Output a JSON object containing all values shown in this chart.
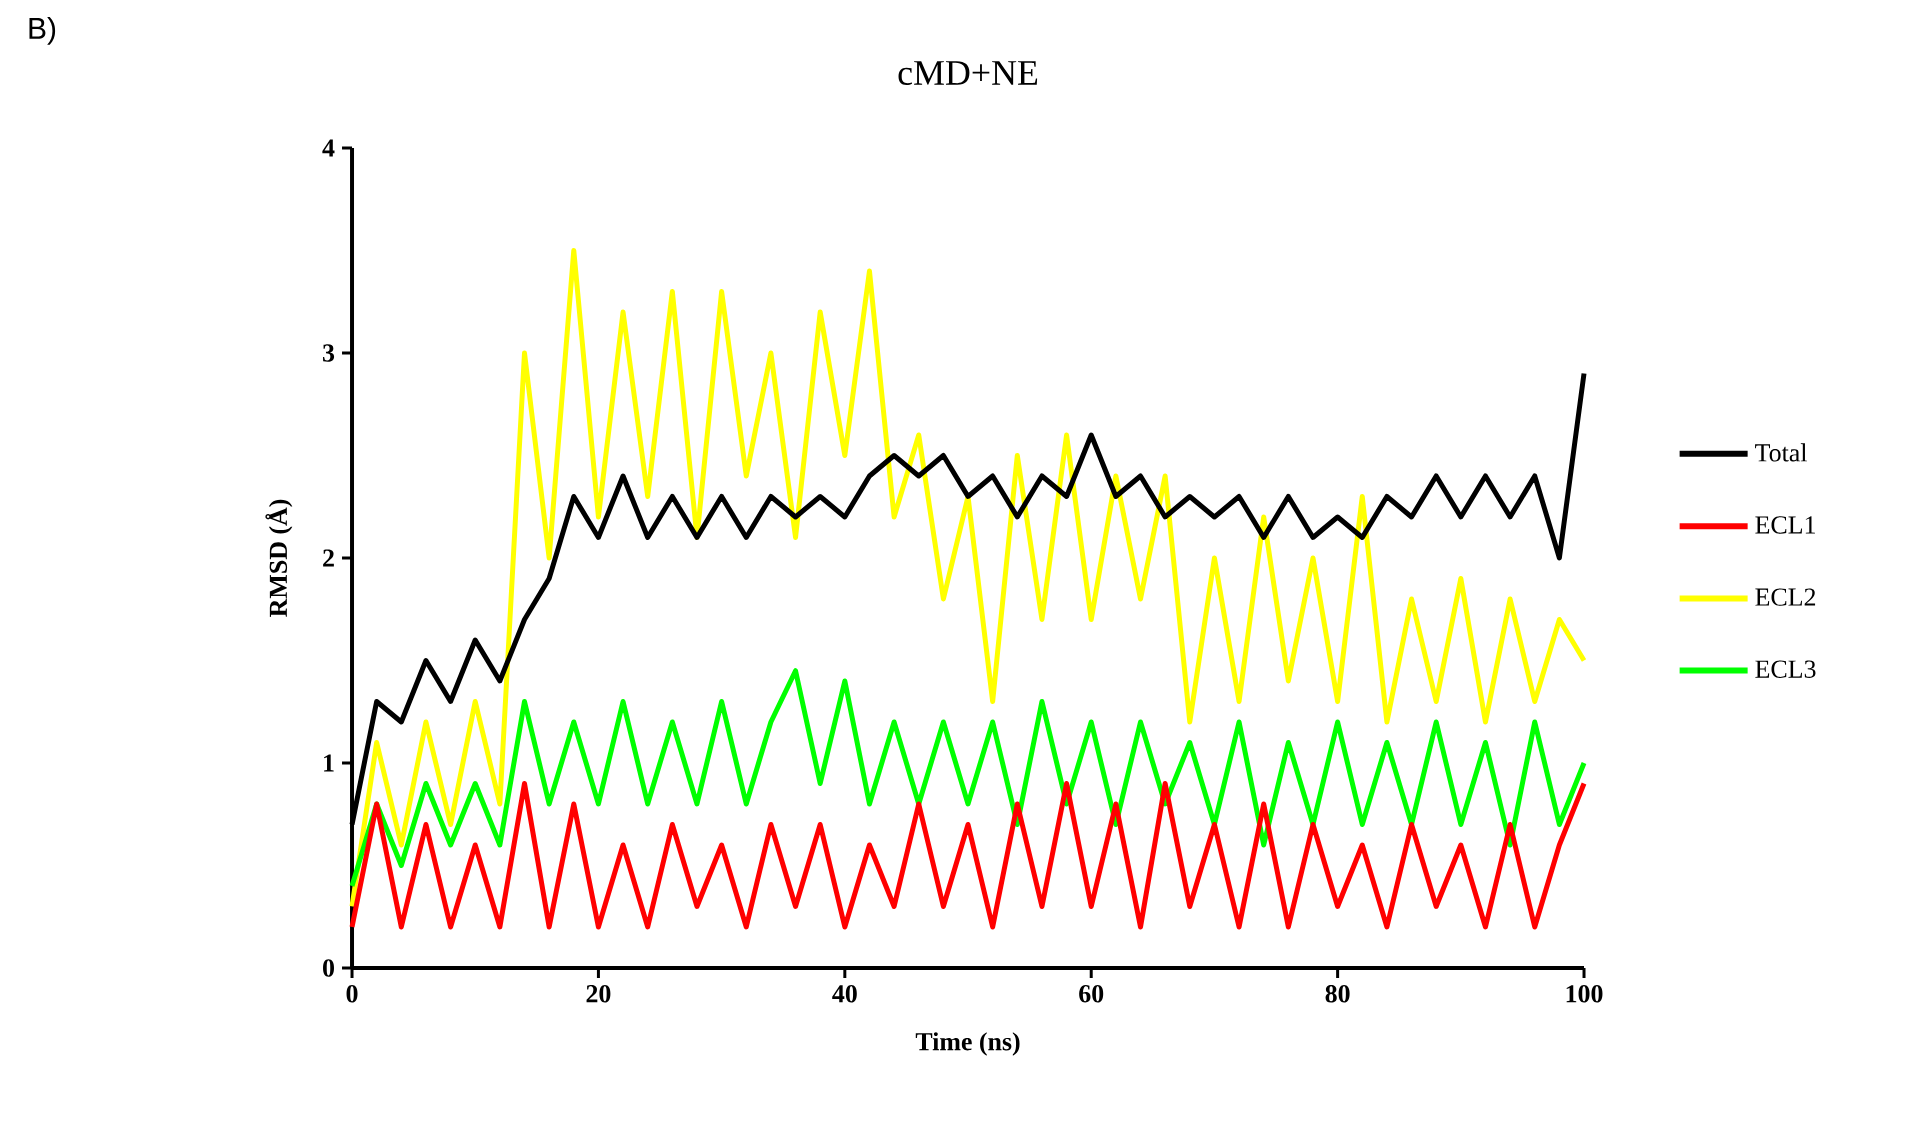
{
  "chart_data": {
    "type": "line",
    "title": "cMD+NE",
    "xlabel": "Time (ns)",
    "ylabel": "RMSD (Å)",
    "annotations": [
      "B)"
    ],
    "x": [
      0,
      2,
      4,
      6,
      8,
      10,
      12,
      14,
      16,
      18,
      20,
      22,
      24,
      26,
      28,
      30,
      32,
      34,
      36,
      38,
      40,
      42,
      44,
      46,
      48,
      50,
      52,
      54,
      56,
      58,
      60,
      62,
      64,
      66,
      68,
      70,
      72,
      74,
      76,
      78,
      80,
      82,
      84,
      86,
      88,
      90,
      92,
      94,
      96,
      98,
      100
    ],
    "series": [
      {
        "name": "Total",
        "color": "#000000",
        "values": [
          0.7,
          1.3,
          1.2,
          1.5,
          1.3,
          1.6,
          1.4,
          1.7,
          1.9,
          2.3,
          2.1,
          2.4,
          2.1,
          2.3,
          2.1,
          2.3,
          2.1,
          2.3,
          2.2,
          2.3,
          2.2,
          2.4,
          2.5,
          2.4,
          2.5,
          2.3,
          2.4,
          2.2,
          2.4,
          2.3,
          2.6,
          2.3,
          2.4,
          2.2,
          2.3,
          2.2,
          2.3,
          2.1,
          2.3,
          2.1,
          2.2,
          2.1,
          2.3,
          2.2,
          2.4,
          2.2,
          2.4,
          2.2,
          2.4,
          2.0,
          2.9
        ]
      },
      {
        "name": "ECL1",
        "color": "#ff0000",
        "values": [
          0.2,
          0.8,
          0.2,
          0.7,
          0.2,
          0.6,
          0.2,
          0.9,
          0.2,
          0.8,
          0.2,
          0.6,
          0.2,
          0.7,
          0.3,
          0.6,
          0.2,
          0.7,
          0.3,
          0.7,
          0.2,
          0.6,
          0.3,
          0.8,
          0.3,
          0.7,
          0.2,
          0.8,
          0.3,
          0.9,
          0.3,
          0.8,
          0.2,
          0.9,
          0.3,
          0.7,
          0.2,
          0.8,
          0.2,
          0.7,
          0.3,
          0.6,
          0.2,
          0.7,
          0.3,
          0.6,
          0.2,
          0.7,
          0.2,
          0.6,
          0.9
        ]
      },
      {
        "name": "ECL2",
        "color": "#ffff00",
        "values": [
          0.3,
          1.1,
          0.6,
          1.2,
          0.7,
          1.3,
          0.8,
          3.0,
          2.0,
          3.5,
          2.2,
          3.2,
          2.3,
          3.3,
          2.1,
          3.3,
          2.4,
          3.0,
          2.1,
          3.2,
          2.5,
          3.4,
          2.2,
          2.6,
          1.8,
          2.3,
          1.3,
          2.5,
          1.7,
          2.6,
          1.7,
          2.4,
          1.8,
          2.4,
          1.2,
          2.0,
          1.3,
          2.2,
          1.4,
          2.0,
          1.3,
          2.3,
          1.2,
          1.8,
          1.3,
          1.9,
          1.2,
          1.8,
          1.3,
          1.7,
          1.5
        ]
      },
      {
        "name": "ECL3",
        "color": "#00ff00",
        "values": [
          0.4,
          0.8,
          0.5,
          0.9,
          0.6,
          0.9,
          0.6,
          1.3,
          0.8,
          1.2,
          0.8,
          1.3,
          0.8,
          1.2,
          0.8,
          1.3,
          0.8,
          1.2,
          1.45,
          0.9,
          1.4,
          0.8,
          1.2,
          0.8,
          1.2,
          0.8,
          1.2,
          0.7,
          1.3,
          0.8,
          1.2,
          0.7,
          1.2,
          0.8,
          1.1,
          0.7,
          1.2,
          0.6,
          1.1,
          0.7,
          1.2,
          0.7,
          1.1,
          0.7,
          1.2,
          0.7,
          1.1,
          0.6,
          1.2,
          0.7,
          1.0
        ]
      }
    ],
    "xlim": [
      0,
      100
    ],
    "xticks": [
      0,
      20,
      40,
      60,
      80,
      100
    ],
    "ylim": [
      0,
      4
    ],
    "yticks": [
      0,
      1,
      2,
      3,
      4
    ],
    "legend": "right",
    "marker": "none",
    "line_style": "solid",
    "grid": false
  }
}
